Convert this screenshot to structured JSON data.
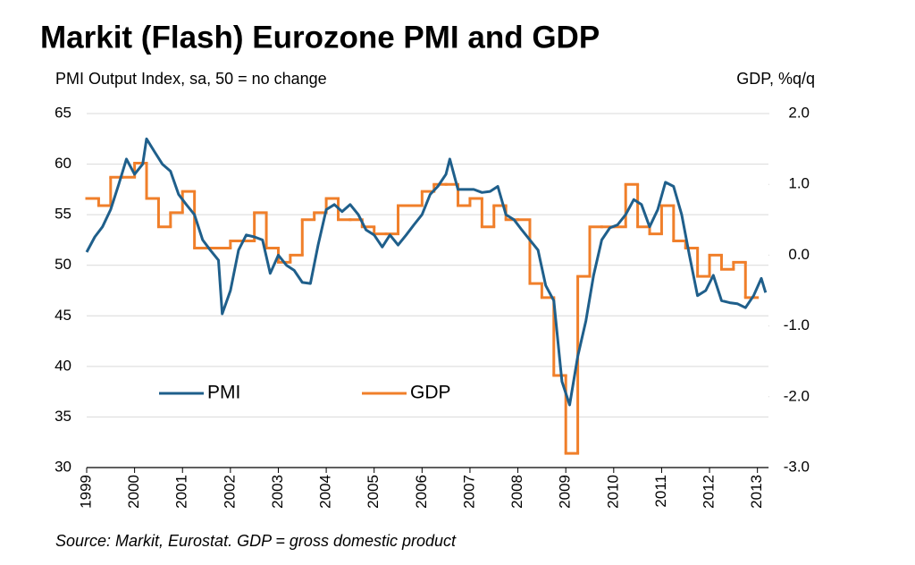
{
  "chart_data": {
    "type": "line",
    "title": "Markit (Flash) Eurozone PMI and GDP",
    "ylabel": "PMI Output Index, sa, 50 = no change",
    "y2label": "GDP, %q/q",
    "source": "Source: Markit, Eurostat. GDP = gross domestic product",
    "xlim": [
      1999,
      2013.23
    ],
    "xticks": [
      1999,
      2000,
      2001,
      2002,
      2003,
      2004,
      2005,
      2006,
      2007,
      2008,
      2009,
      2010,
      2011,
      2012,
      2013
    ],
    "ylim": [
      30,
      65
    ],
    "yticks": [
      30,
      35,
      40,
      45,
      50,
      55,
      60,
      65
    ],
    "y2lim": [
      -3,
      2
    ],
    "y2ticks": [
      {
        "value": -3,
        "label": "-3.0"
      },
      {
        "value": -2,
        "label": "-2.0"
      },
      {
        "value": -1,
        "label": "-1.0"
      },
      {
        "value": 0,
        "label": "0.0"
      },
      {
        "value": 1,
        "label": "1.0"
      },
      {
        "value": 2,
        "label": "2.0"
      }
    ],
    "grid": true,
    "series": [
      {
        "name": "PMI",
        "color": "#1f5f8b",
        "x": [
          1999.0,
          1999.17,
          1999.33,
          1999.5,
          1999.67,
          1999.83,
          2000.0,
          2000.17,
          2000.25,
          2000.42,
          2000.58,
          2000.75,
          2000.92,
          2001.08,
          2001.25,
          2001.42,
          2001.58,
          2001.75,
          2001.83,
          2002.0,
          2002.17,
          2002.33,
          2002.5,
          2002.67,
          2002.83,
          2003.0,
          2003.17,
          2003.33,
          2003.5,
          2003.67,
          2003.83,
          2004.0,
          2004.17,
          2004.33,
          2004.5,
          2004.67,
          2004.83,
          2005.0,
          2005.17,
          2005.33,
          2005.5,
          2005.67,
          2005.83,
          2006.0,
          2006.17,
          2006.33,
          2006.5,
          2006.58,
          2006.75,
          2006.92,
          2007.08,
          2007.25,
          2007.42,
          2007.58,
          2007.75,
          2007.92,
          2008.08,
          2008.25,
          2008.42,
          2008.58,
          2008.75,
          2008.92,
          2009.08,
          2009.25,
          2009.42,
          2009.58,
          2009.75,
          2009.92,
          2010.08,
          2010.25,
          2010.42,
          2010.58,
          2010.75,
          2010.92,
          2011.08,
          2011.25,
          2011.42,
          2011.58,
          2011.75,
          2011.92,
          2012.08,
          2012.25,
          2012.42,
          2012.58,
          2012.75,
          2012.92,
          2013.08,
          2013.17
        ],
        "values": [
          51.3,
          52.8,
          53.8,
          55.5,
          58,
          60.5,
          59,
          60,
          62.5,
          61.2,
          60,
          59.3,
          57,
          56,
          55,
          52.5,
          51.5,
          50.5,
          45.2,
          47.5,
          51.5,
          53,
          52.8,
          52.5,
          49.2,
          51,
          50,
          49.5,
          48.3,
          48.2,
          52,
          55.5,
          56,
          55.3,
          56,
          55,
          53.5,
          53,
          51.8,
          53,
          52,
          53,
          54,
          55,
          57,
          57.8,
          59,
          60.5,
          57.5,
          57.5,
          57.5,
          57.2,
          57.3,
          57.8,
          55,
          54.5,
          53.5,
          52.5,
          51.5,
          48,
          46.5,
          38.5,
          36.2,
          41,
          44.5,
          49,
          52.5,
          53.7,
          54,
          55,
          56.5,
          56,
          53.8,
          55.5,
          58.2,
          57.8,
          55,
          51,
          47,
          47.5,
          49,
          46.5,
          46.3,
          46.2,
          45.8,
          47,
          48.7,
          47.3
        ]
      },
      {
        "name": "GDP",
        "color": "#f07f2a",
        "axis": "y2",
        "step": true,
        "x": [
          1999.0,
          1999.25,
          1999.5,
          1999.75,
          2000.0,
          2000.25,
          2000.5,
          2000.75,
          2001.0,
          2001.25,
          2001.5,
          2001.75,
          2002.0,
          2002.25,
          2002.5,
          2002.75,
          2003.0,
          2003.25,
          2003.5,
          2003.75,
          2004.0,
          2004.25,
          2004.5,
          2004.75,
          2005.0,
          2005.25,
          2005.5,
          2005.75,
          2006.0,
          2006.25,
          2006.5,
          2006.75,
          2007.0,
          2007.25,
          2007.5,
          2007.75,
          2008.0,
          2008.25,
          2008.5,
          2008.75,
          2009.0,
          2009.25,
          2009.5,
          2009.75,
          2010.0,
          2010.25,
          2010.5,
          2010.75,
          2011.0,
          2011.25,
          2011.5,
          2011.75,
          2012.0,
          2012.25,
          2012.5,
          2012.75
        ],
        "values": [
          0.8,
          0.7,
          1.1,
          1.1,
          1.3,
          0.8,
          0.4,
          0.6,
          0.9,
          0.1,
          0.1,
          0.1,
          0.2,
          0.2,
          0.6,
          0.1,
          -0.1,
          0.0,
          0.5,
          0.6,
          0.8,
          0.5,
          0.5,
          0.4,
          0.3,
          0.3,
          0.7,
          0.7,
          0.9,
          1.0,
          1.0,
          0.7,
          0.8,
          0.4,
          0.7,
          0.5,
          0.5,
          -0.4,
          -0.6,
          -1.7,
          -2.8,
          -0.3,
          0.4,
          0.4,
          0.4,
          1.0,
          0.4,
          0.3,
          0.7,
          0.2,
          0.1,
          -0.3,
          0.0,
          -0.2,
          -0.1,
          -0.6
        ]
      }
    ]
  }
}
